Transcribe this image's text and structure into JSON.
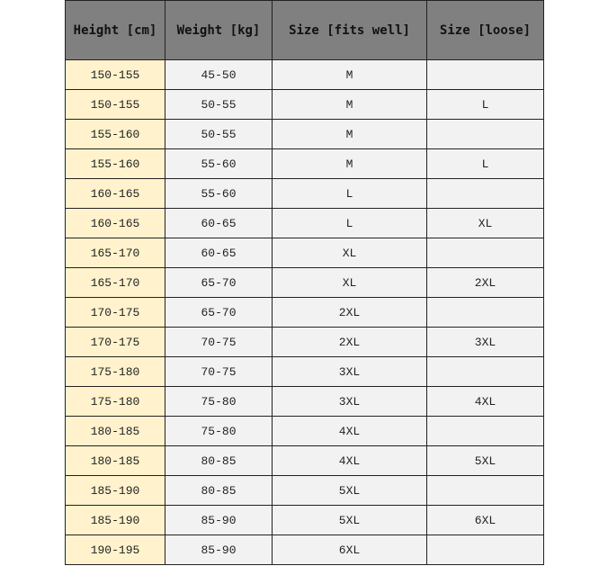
{
  "headers": [
    "Height [cm]",
    "Weight [kg]",
    "Size [fits well]",
    "Size [loose]"
  ],
  "colors": {
    "header_bg": "#808080",
    "height_col_bg": "#fff2cc",
    "cell_bg": "#f2f2f2"
  },
  "rows": [
    [
      "150-155",
      "45-50",
      "M",
      ""
    ],
    [
      "150-155",
      "50-55",
      "M",
      "L"
    ],
    [
      "155-160",
      "50-55",
      "M",
      ""
    ],
    [
      "155-160",
      "55-60",
      "M",
      "L"
    ],
    [
      "160-165",
      "55-60",
      "L",
      ""
    ],
    [
      "160-165",
      "60-65",
      "L",
      "XL"
    ],
    [
      "165-170",
      "60-65",
      "XL",
      ""
    ],
    [
      "165-170",
      "65-70",
      "XL",
      "2XL"
    ],
    [
      "170-175",
      "65-70",
      "2XL",
      ""
    ],
    [
      "170-175",
      "70-75",
      "2XL",
      "3XL"
    ],
    [
      "175-180",
      "70-75",
      "3XL",
      ""
    ],
    [
      "175-180",
      "75-80",
      "3XL",
      "4XL"
    ],
    [
      "180-185",
      "75-80",
      "4XL",
      ""
    ],
    [
      "180-185",
      "80-85",
      "4XL",
      "5XL"
    ],
    [
      "185-190",
      "80-85",
      "5XL",
      ""
    ],
    [
      "185-190",
      "85-90",
      "5XL",
      "6XL"
    ],
    [
      "190-195",
      "85-90",
      "6XL",
      ""
    ]
  ]
}
